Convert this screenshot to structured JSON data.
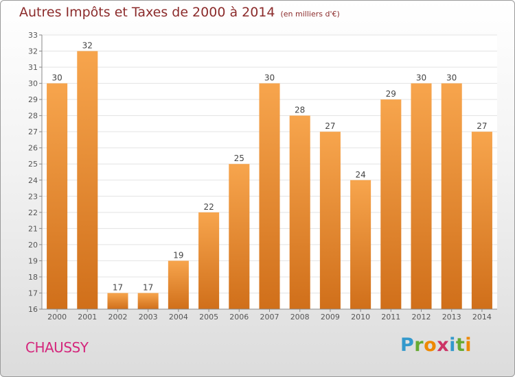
{
  "title": "Autres Impôts et Taxes de 2000 à 2014",
  "title_unit": "(en milliers d'€)",
  "commune": "CHAUSSY",
  "logo": {
    "text": "Proxiti",
    "letters": [
      {
        "char": "P",
        "color": "#3399cc"
      },
      {
        "char": "r",
        "color": "#66aa33"
      },
      {
        "char": "o",
        "color": "#ee8800"
      },
      {
        "char": "x",
        "color": "#cc3366"
      },
      {
        "char": "i",
        "color": "#3399cc"
      },
      {
        "char": "t",
        "color": "#66aa33"
      },
      {
        "char": "i",
        "color": "#ee8800"
      }
    ]
  },
  "colors": {
    "title": "#8b2b2b",
    "commune": "#d4267c",
    "bar_top": "#f7a54d",
    "bar_bottom": "#d06f1a",
    "grid": "#e3e3e3",
    "axis": "#888888"
  },
  "chart_data": {
    "type": "bar",
    "categories": [
      "2000",
      "2001",
      "2002",
      "2003",
      "2004",
      "2005",
      "2006",
      "2007",
      "2008",
      "2009",
      "2010",
      "2011",
      "2012",
      "2013",
      "2014"
    ],
    "values": [
      30,
      32,
      17,
      17,
      19,
      22,
      25,
      30,
      28,
      27,
      24,
      29,
      30,
      30,
      27
    ],
    "ylim": [
      16,
      33
    ],
    "yticks": [
      16,
      17,
      18,
      19,
      20,
      21,
      22,
      23,
      24,
      25,
      26,
      27,
      28,
      29,
      30,
      31,
      32,
      33
    ],
    "grid": true
  }
}
